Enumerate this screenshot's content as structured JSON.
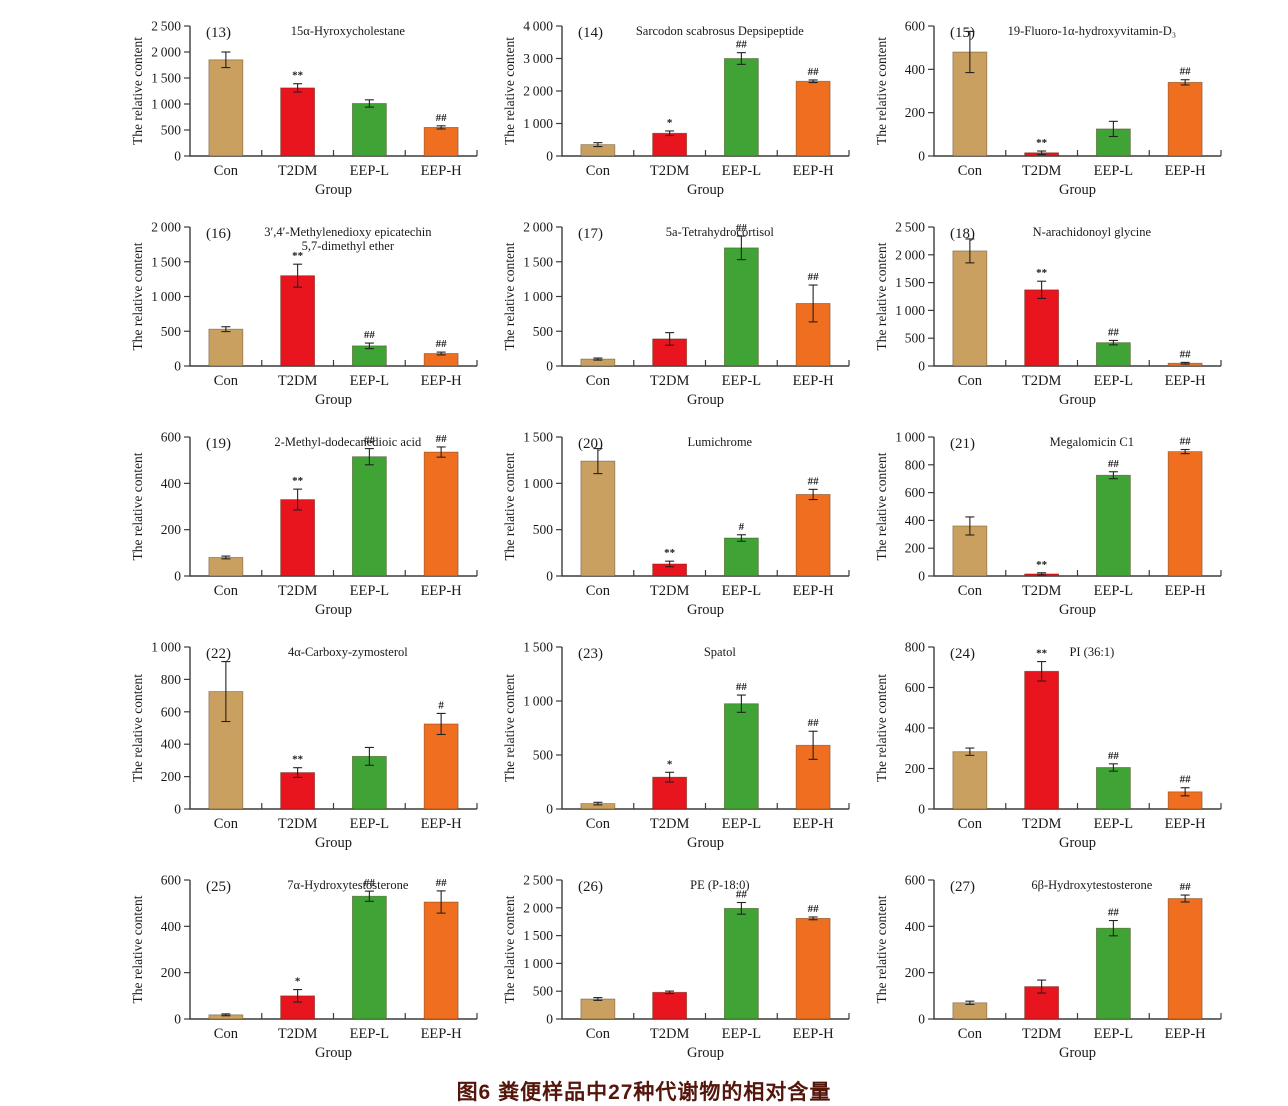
{
  "figure": {
    "caption": "图6  粪便样品中27种代谢物的相对含量",
    "caption_color": "#54150b"
  },
  "shared": {
    "categories": [
      "Con",
      "T2DM",
      "EEP-L",
      "EEP-H"
    ],
    "xlabel": "Group",
    "ylabel": "The relative content",
    "bar_colors": [
      "#c9a05f",
      "#e8141e",
      "#3fa435",
      "#f06e1f"
    ],
    "axis_color": "#3c3c3c",
    "text_color": "#1a1a1a"
  },
  "chart_data": [
    {
      "type": "bar",
      "panel": "(13)",
      "title_lines": [
        "15α-Hyroxycholestane"
      ],
      "values": [
        1850,
        1310,
        1010,
        550
      ],
      "errors": [
        150,
        80,
        70,
        30
      ],
      "sig": [
        "",
        "**",
        "",
        "##"
      ],
      "ylim": [
        0,
        2500
      ],
      "ystep": 500
    },
    {
      "type": "bar",
      "panel": "(14)",
      "title_lines": [
        "Sarcodon scabrosus Depsipeptide"
      ],
      "values": [
        350,
        700,
        3000,
        2300
      ],
      "errors": [
        60,
        70,
        180,
        40
      ],
      "sig": [
        "",
        "*",
        "##",
        "##"
      ],
      "ylim": [
        0,
        4000
      ],
      "ystep": 1000
    },
    {
      "type": "bar",
      "panel": "(15)",
      "title_lines": [
        "19-Fluoro-1α-hydroxyvitamin-D₃"
      ],
      "values": [
        480,
        15,
        125,
        340
      ],
      "errors": [
        95,
        8,
        35,
        12
      ],
      "sig": [
        "",
        "**",
        "",
        "##"
      ],
      "ylim": [
        0,
        600
      ],
      "ystep": 200
    },
    {
      "type": "bar",
      "panel": "(16)",
      "title_lines": [
        "3′,4′-Methylenedioxy epicatechin",
        "5,7-dimethyl ether"
      ],
      "values": [
        530,
        1300,
        290,
        180
      ],
      "errors": [
        35,
        165,
        40,
        20
      ],
      "sig": [
        "",
        "**",
        "##",
        "##"
      ],
      "ylim": [
        0,
        2000
      ],
      "ystep": 500
    },
    {
      "type": "bar",
      "panel": "(17)",
      "title_lines": [
        "5a-Tetrahydrocortisol"
      ],
      "values": [
        100,
        390,
        1700,
        900
      ],
      "errors": [
        15,
        90,
        170,
        265
      ],
      "sig": [
        "",
        "",
        "##",
        "##"
      ],
      "ylim": [
        0,
        2000
      ],
      "ystep": 500
    },
    {
      "type": "bar",
      "panel": "(18)",
      "title_lines": [
        "N-arachidonoyl glycine"
      ],
      "values": [
        2070,
        1370,
        420,
        50
      ],
      "errors": [
        215,
        155,
        40,
        15
      ],
      "sig": [
        "",
        "**",
        "##",
        "##"
      ],
      "ylim": [
        0,
        2500
      ],
      "ystep": 500
    },
    {
      "type": "bar",
      "panel": "(19)",
      "title_lines": [
        "2-Methyl-dodecanedioic acid"
      ],
      "values": [
        80,
        330,
        515,
        535
      ],
      "errors": [
        6,
        45,
        35,
        22
      ],
      "sig": [
        "",
        "**",
        "##",
        "##"
      ],
      "ylim": [
        0,
        600
      ],
      "ystep": 200
    },
    {
      "type": "bar",
      "panel": "(20)",
      "title_lines": [
        "Lumichrome"
      ],
      "values": [
        1240,
        130,
        410,
        880
      ],
      "errors": [
        135,
        30,
        35,
        55
      ],
      "sig": [
        "",
        "**",
        "#",
        "##"
      ],
      "ylim": [
        0,
        1500
      ],
      "ystep": 500
    },
    {
      "type": "bar",
      "panel": "(21)",
      "title_lines": [
        "Megalomicin C1"
      ],
      "values": [
        360,
        15,
        725,
        895
      ],
      "errors": [
        65,
        8,
        25,
        15
      ],
      "sig": [
        "",
        "**",
        "##",
        "##"
      ],
      "ylim": [
        0,
        1000
      ],
      "ystep": 200
    },
    {
      "type": "bar",
      "panel": "(22)",
      "title_lines": [
        "4α-Carboxy-zymosterol"
      ],
      "values": [
        725,
        225,
        325,
        525
      ],
      "errors": [
        185,
        30,
        55,
        65
      ],
      "sig": [
        "",
        "**",
        "",
        "#"
      ],
      "ylim": [
        0,
        1000
      ],
      "ystep": 200
    },
    {
      "type": "bar",
      "panel": "(23)",
      "title_lines": [
        "Spatol"
      ],
      "values": [
        50,
        295,
        975,
        590
      ],
      "errors": [
        12,
        45,
        80,
        130
      ],
      "sig": [
        "",
        "*",
        "##",
        "##"
      ],
      "ylim": [
        0,
        1500
      ],
      "ystep": 500
    },
    {
      "type": "bar",
      "panel": "(24)",
      "title_lines": [
        "PI (36:1)"
      ],
      "values": [
        283,
        680,
        205,
        85
      ],
      "errors": [
        18,
        48,
        18,
        20
      ],
      "sig": [
        "",
        "**",
        "##",
        "##"
      ],
      "ylim": [
        0,
        800
      ],
      "ystep": 200
    },
    {
      "type": "bar",
      "panel": "(25)",
      "title_lines": [
        "7α-Hydroxytestosterone"
      ],
      "values": [
        18,
        100,
        530,
        505
      ],
      "errors": [
        4,
        27,
        22,
        48
      ],
      "sig": [
        "",
        "*",
        "##",
        "##"
      ],
      "ylim": [
        0,
        600
      ],
      "ystep": 200
    },
    {
      "type": "bar",
      "panel": "(26)",
      "title_lines": [
        "PE (P-18:0)"
      ],
      "values": [
        360,
        480,
        1990,
        1810
      ],
      "errors": [
        25,
        22,
        105,
        25
      ],
      "sig": [
        "",
        "",
        "##",
        "##"
      ],
      "ylim": [
        0,
        2500
      ],
      "ystep": 500
    },
    {
      "type": "bar",
      "panel": "(27)",
      "title_lines": [
        "6β-Hydroxytestosterone"
      ],
      "values": [
        70,
        140,
        392,
        520
      ],
      "errors": [
        7,
        28,
        33,
        15
      ],
      "sig": [
        "",
        "",
        "##",
        "##"
      ],
      "ylim": [
        0,
        600
      ],
      "ystep": 200
    }
  ]
}
